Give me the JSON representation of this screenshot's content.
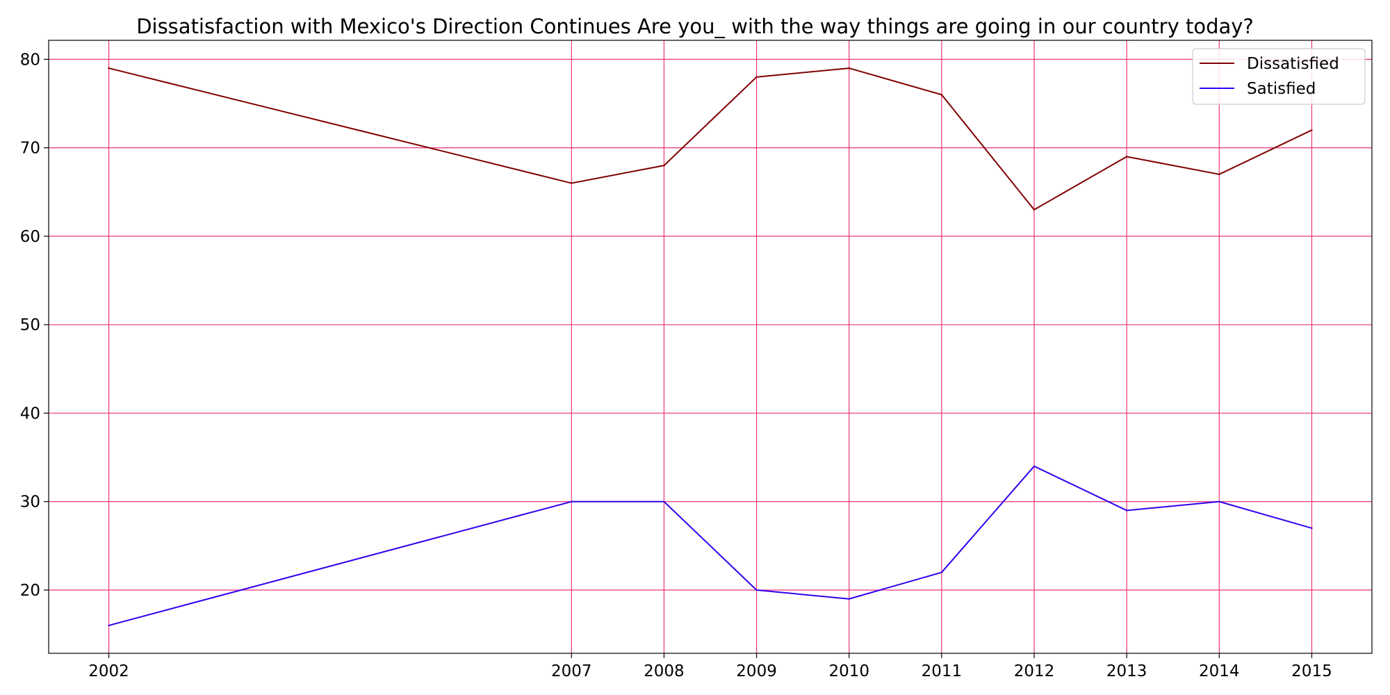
{
  "chart_data": {
    "type": "line",
    "title": "Dissatisfaction with Mexico's Direction Continues Are you_ with the way things are going in our country today?",
    "xlabel": "",
    "ylabel": "",
    "x": [
      2002,
      2007,
      2008,
      2009,
      2010,
      2011,
      2012,
      2013,
      2014,
      2015
    ],
    "x_tick_labels": [
      "2002",
      "2007",
      "2008",
      "2009",
      "2010",
      "2011",
      "2012",
      "2013",
      "2014",
      "2015"
    ],
    "y_ticks": [
      20,
      30,
      40,
      50,
      60,
      70,
      80
    ],
    "y_tick_labels": [
      "20",
      "30",
      "40",
      "50",
      "60",
      "70",
      "80"
    ],
    "xlim": [
      2001.35,
      2015.65
    ],
    "ylim": [
      12.85,
      82.15
    ],
    "grid": true,
    "legend_position": "top-right",
    "series": [
      {
        "name": "Dissatisfied",
        "color": "#800000",
        "values": [
          79,
          66,
          68,
          78,
          79,
          76,
          63,
          69,
          67,
          72
        ]
      },
      {
        "name": "Satisfied",
        "color": "#3300ee",
        "values": [
          16,
          30,
          30,
          20,
          19,
          22,
          34,
          29,
          30,
          27
        ]
      }
    ],
    "grid_color": "#ee3377"
  }
}
